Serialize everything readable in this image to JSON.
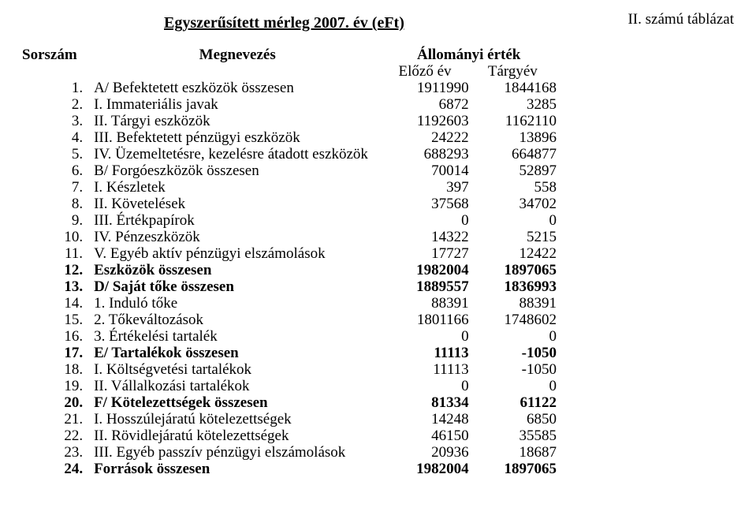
{
  "annotation": "II. számú táblázat",
  "title": "Egyszerűsített mérleg 2007. év  (eFt)",
  "headers": {
    "sorszam": "Sorszám",
    "megnevezes": "Megnevezés",
    "allomanyi": "Állományi érték",
    "elozo": "Előző év",
    "targy": "Tárgyév"
  },
  "rows": [
    {
      "n": "1.",
      "label": "A/ Befektetett eszközök összesen",
      "prev": "1911990",
      "curr": "1844168",
      "bold": false
    },
    {
      "n": "2.",
      "label": "I. Immateriális javak",
      "prev": "6872",
      "curr": "3285",
      "bold": false
    },
    {
      "n": "3.",
      "label": "II. Tárgyi eszközök",
      "prev": "1192603",
      "curr": "1162110",
      "bold": false
    },
    {
      "n": "4.",
      "label": "III. Befektetett pénzügyi eszközök",
      "prev": "24222",
      "curr": "13896",
      "bold": false
    },
    {
      "n": "5.",
      "label": "IV. Üzemeltetésre, kezelésre átadott eszközök",
      "prev": "688293",
      "curr": "664877",
      "bold": false
    },
    {
      "n": "6.",
      "label": "B/ Forgóeszközök összesen",
      "prev": "70014",
      "curr": "52897",
      "bold": false
    },
    {
      "n": "7.",
      "label": "I. Készletek",
      "prev": "397",
      "curr": "558",
      "bold": false
    },
    {
      "n": "8.",
      "label": "II. Követelések",
      "prev": "37568",
      "curr": "34702",
      "bold": false
    },
    {
      "n": "9.",
      "label": "III. Értékpapírok",
      "prev": "0",
      "curr": "0",
      "bold": false
    },
    {
      "n": "10.",
      "label": "IV. Pénzeszközök",
      "prev": "14322",
      "curr": "5215",
      "bold": false
    },
    {
      "n": "11.",
      "label": "V. Egyéb aktív pénzügyi elszámolások",
      "prev": "17727",
      "curr": "12422",
      "bold": false
    },
    {
      "n": "12.",
      "label": "Eszközök összesen",
      "prev": "1982004",
      "curr": "1897065",
      "bold": true
    },
    {
      "n": "13.",
      "label": "D/ Saját tőke összesen",
      "prev": "1889557",
      "curr": "1836993",
      "bold": true
    },
    {
      "n": "14.",
      "label": "1. Induló tőke",
      "prev": "88391",
      "curr": "88391",
      "bold": false
    },
    {
      "n": "15.",
      "label": "2. Tőkeváltozások",
      "prev": "1801166",
      "curr": "1748602",
      "bold": false
    },
    {
      "n": "16.",
      "label": "3. Értékelési tartalék",
      "prev": "0",
      "curr": "0",
      "bold": false
    },
    {
      "n": "17.",
      "label": "E/ Tartalékok összesen",
      "prev": "11113",
      "curr": "-1050",
      "bold": true
    },
    {
      "n": "18.",
      "label": "I. Költségvetési tartalékok",
      "prev": "11113",
      "curr": "-1050",
      "bold": false
    },
    {
      "n": "19.",
      "label": "II. Vállalkozási tartalékok",
      "prev": "0",
      "curr": "0",
      "bold": false
    },
    {
      "n": "20.",
      "label": "F/ Kötelezettségek összesen",
      "prev": "81334",
      "curr": "61122",
      "bold": true
    },
    {
      "n": "21.",
      "label": "I. Hosszúlejáratú kötelezettségek",
      "prev": "14248",
      "curr": "6850",
      "bold": false
    },
    {
      "n": "22.",
      "label": "II. Rövidlejáratú kötelezettségek",
      "prev": "46150",
      "curr": "35585",
      "bold": false
    },
    {
      "n": "23.",
      "label": "III. Egyéb passzív pénzügyi elszámolások",
      "prev": "20936",
      "curr": "18687",
      "bold": false
    },
    {
      "n": "24.",
      "label": "Források összesen",
      "prev": "1982004",
      "curr": "1897065",
      "bold": true
    }
  ]
}
